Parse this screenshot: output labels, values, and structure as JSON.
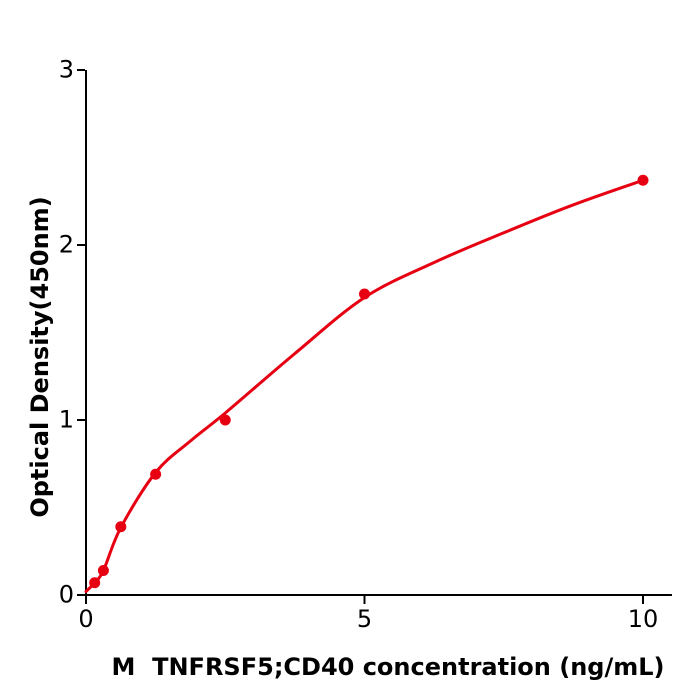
{
  "chart_data": {
    "type": "scatter",
    "title": "",
    "xlabel": "M  TNFRSF5;CD40 concentration (ng/mL)",
    "ylabel": "Optical Density(450nm)",
    "xlim": [
      0,
      10.52
    ],
    "ylim": [
      0,
      3
    ],
    "xticks": [
      0,
      5,
      10
    ],
    "yticks": [
      0,
      1,
      2,
      3
    ],
    "grid": false,
    "legend": "none",
    "colors": {
      "curve": "#e60012",
      "marker": "#e60012",
      "axis": "#000000",
      "text": "#000000",
      "background": "#ffffff"
    },
    "series": [
      {
        "points": [
          {
            "x": 0.156,
            "y": 0.07
          },
          {
            "x": 0.3125,
            "y": 0.14
          },
          {
            "x": 0.625,
            "y": 0.39
          },
          {
            "x": 1.25,
            "y": 0.69
          },
          {
            "x": 2.5,
            "y": 1.0
          },
          {
            "x": 5,
            "y": 1.72
          },
          {
            "x": 10,
            "y": 2.37
          }
        ],
        "fit_curve": [
          {
            "x": 0,
            "y": 0.02
          },
          {
            "x": 0.156,
            "y": 0.07
          },
          {
            "x": 0.3125,
            "y": 0.14
          },
          {
            "x": 0.625,
            "y": 0.385
          },
          {
            "x": 1.25,
            "y": 0.7
          },
          {
            "x": 1.875,
            "y": 0.88
          },
          {
            "x": 2.5,
            "y": 1.04
          },
          {
            "x": 3.75,
            "y": 1.38
          },
          {
            "x": 5,
            "y": 1.7
          },
          {
            "x": 6.25,
            "y": 1.9
          },
          {
            "x": 7.5,
            "y": 2.07
          },
          {
            "x": 8.75,
            "y": 2.23
          },
          {
            "x": 10,
            "y": 2.37
          }
        ]
      }
    ]
  }
}
